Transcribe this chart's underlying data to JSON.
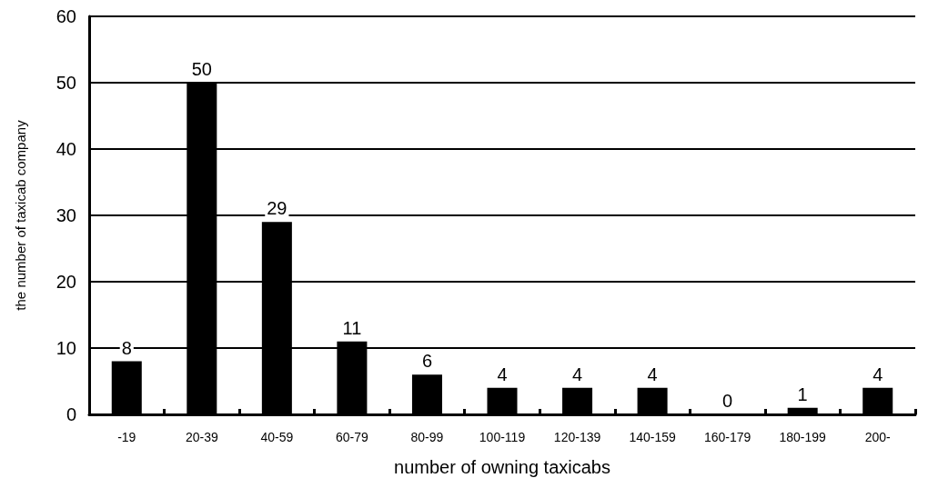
{
  "chart_data": {
    "type": "bar",
    "xlabel": "number of owning taxicabs",
    "ylabel": "the number of taxicab company",
    "categories": [
      "-19",
      "20-39",
      "40-59",
      "60-79",
      "80-99",
      "100-119",
      "120-139",
      "140-159",
      "160-179",
      "180-199",
      "200-"
    ],
    "values": [
      8,
      50,
      29,
      11,
      6,
      4,
      4,
      4,
      0,
      1,
      4
    ],
    "color": "#000000",
    "ylim": [
      0,
      60
    ],
    "yticks": [
      0,
      10,
      20,
      30,
      40,
      50,
      60
    ],
    "grid": "y",
    "data_labels": true
  }
}
